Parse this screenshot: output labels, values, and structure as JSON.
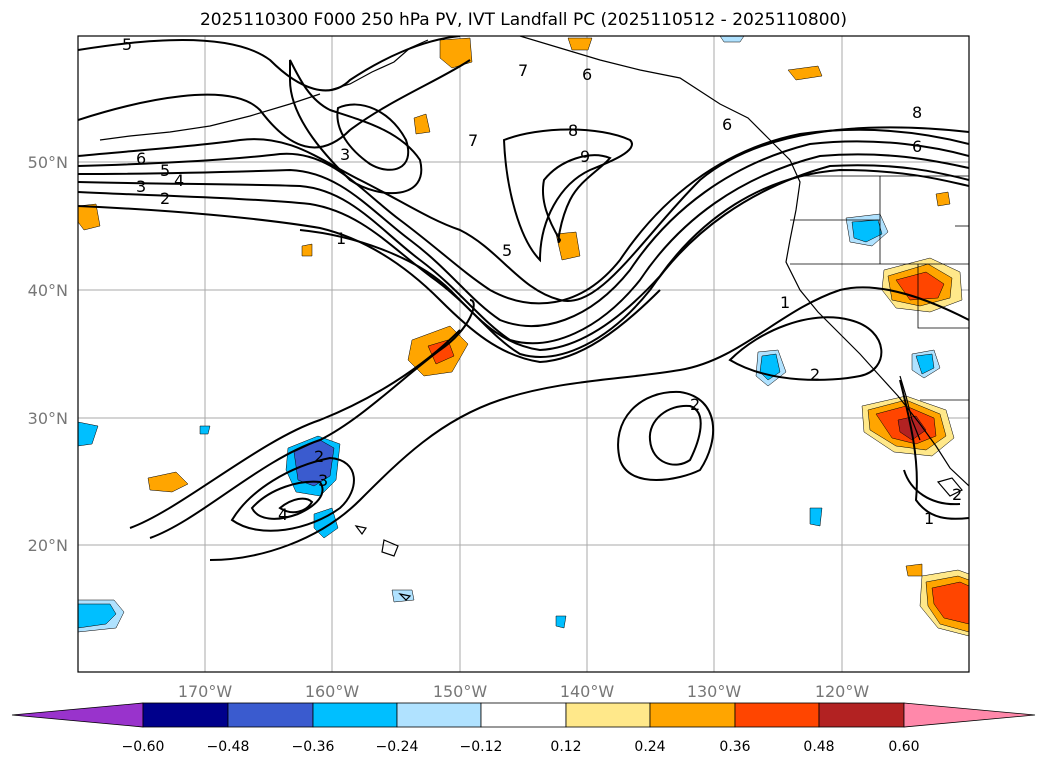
{
  "title": "2025110300 F000 250 hPa PV, IVT Landfall PC (2025110512 - 2025110800)",
  "lat_labels": [
    "50°N",
    "40°N",
    "30°N",
    "20°N"
  ],
  "lon_labels": [
    "170°W",
    "160°W",
    "150°W",
    "140°W",
    "130°W",
    "120°W"
  ],
  "contour_labels": [
    "5",
    "6",
    "5",
    "4",
    "3",
    "2",
    "1",
    "3",
    "7",
    "7",
    "6",
    "8",
    "9",
    "5",
    "6",
    "8",
    "6",
    "1",
    "2",
    "2",
    "2",
    "3",
    "4",
    "1",
    "2"
  ],
  "colorbar": {
    "ticks": [
      "−0.60",
      "−0.48",
      "−0.36",
      "−0.24",
      "−0.12",
      "0.12",
      "0.24",
      "0.36",
      "0.48",
      "0.60"
    ],
    "colors": [
      "#9933cc",
      "#00008b",
      "#3a5bcf",
      "#00bfff",
      "#b0e2ff",
      "#ffffff",
      "#ffe88a",
      "#ffa500",
      "#ff4500",
      "#b22222",
      "#ff88aa"
    ]
  }
}
